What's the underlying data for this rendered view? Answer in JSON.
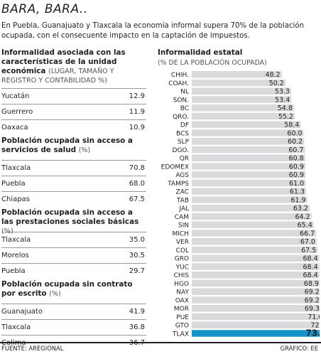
{
  "title": "BARA, BARA..",
  "subtitle": "En Puebla, Guanajuato y Tlaxcala la economía informal supera 70% de la población ocupada, con el consecuente impacto en la captación de impuestos.",
  "tables": [
    {
      "title": "Informalidad asociada con las características de la unidad económica",
      "title_note": "(LUGAR, TAMAÑO Y REGISTRO Y CONTABILIDAD %)",
      "rows": [
        {
          "label": "Yucatán",
          "value": "12.9"
        },
        {
          "label": "Guerrero",
          "value": "11.9"
        },
        {
          "label": "Oaxaca",
          "value": "10.9"
        }
      ]
    },
    {
      "title": "Población ocupada sin acceso a servicios de salud",
      "title_note": "(%)",
      "rows": [
        {
          "label": "Tlaxcala",
          "value": "70.8"
        },
        {
          "label": "Puebla",
          "value": "68.0"
        },
        {
          "label": "Chiapas",
          "value": "67.5"
        }
      ]
    },
    {
      "title": "Población ocupada sin acceso a las prestaciones sociales básicas",
      "title_note": "(%)",
      "rows": [
        {
          "label": "Tlaxcala",
          "value": "35.0"
        },
        {
          "label": "Morelos",
          "value": "30.5"
        },
        {
          "label": "Puebla",
          "value": "29.7"
        }
      ]
    },
    {
      "title": "Población ocupada sin contrato por escrito",
      "title_note": "(%)",
      "rows": [
        {
          "label": "Guanajuato",
          "value": "41.9"
        },
        {
          "label": "Tlaxcala",
          "value": "36.8"
        },
        {
          "label": "Colima",
          "value": "36.7"
        }
      ]
    }
  ],
  "chart_data": {
    "type": "bar",
    "orientation": "horizontal",
    "title": "Informalidad estatal",
    "subtitle": "(% DE LA POBLACIÓN OCUPADA)",
    "categories": [
      "CHIH.",
      "COAH.",
      "NL",
      "SON.",
      "BC",
      "QRO.",
      "DF",
      "BCS",
      "SLP",
      "DGO.",
      "QR",
      "EDOMEX",
      "AGS",
      "TAMPS",
      "ZAC",
      "TAB",
      "JAL",
      "CAM",
      "SIN",
      "MICH",
      "VER",
      "COL",
      "GRO",
      "YUC",
      "CHIS",
      "HGO",
      "NAY",
      "OAX",
      "MOR",
      "PUE",
      "GTO",
      "TLAX"
    ],
    "values": [
      48.2,
      50.2,
      53.3,
      53.4,
      54.8,
      55.2,
      58.4,
      60.0,
      60.2,
      60.7,
      60.8,
      60.9,
      60.9,
      61.0,
      61.3,
      61.9,
      63.2,
      64.2,
      65.4,
      66.7,
      67.0,
      67.5,
      68.4,
      68.4,
      68.4,
      68.9,
      69.2,
      69.2,
      69.3,
      71.0,
      72.6,
      73.1
    ],
    "value_labels": [
      "48.2",
      "50.2",
      "53.3",
      "53.4",
      "54.8",
      "55.2",
      "58.4",
      "60.0",
      "60.2",
      "60.7",
      "60.8",
      "60.9",
      "60.9",
      "61.0",
      "61.3",
      "61.9",
      "63.2",
      "64.2",
      "65.4",
      "66.7",
      "67.0",
      "67.5",
      "68.4",
      "68.4",
      "68.4",
      "68.9",
      "69.2",
      "69.2",
      "69.3",
      "71.0",
      "72.6",
      "73.1"
    ],
    "highlight": "TLAX",
    "xlim": [
      0,
      73.1
    ],
    "colors": {
      "bar": "#d9dadb",
      "highlight": "#1493c9",
      "text": "#231f20"
    }
  },
  "footer": {
    "source": "FUENTE: AREGIONAL",
    "credit": "GRÁFICO: EE"
  }
}
